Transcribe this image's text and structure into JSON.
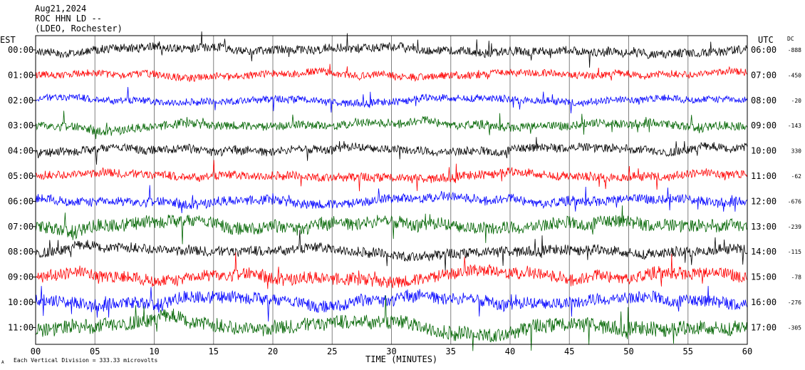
{
  "header": {
    "date": "Aug21,2024",
    "station": "ROC HHN LD --",
    "location": "(LDEO, Rochester)"
  },
  "chart_data": {
    "type": "line",
    "title": "",
    "xlabel": "TIME (MINUTES)",
    "left_axis_label": "EST",
    "right_axis_label": "UTC",
    "dc_label": "DC",
    "scale_note": "Each Vertical Division =  333.33 microvolts",
    "corner_mark": "A",
    "xlim": [
      0,
      60
    ],
    "x_ticks": [
      "00",
      "05",
      "10",
      "15",
      "20",
      "25",
      "30",
      "35",
      "40",
      "45",
      "50",
      "55",
      "60"
    ],
    "grid": "vertical lines every 5 minutes",
    "rows": [
      {
        "est": "00:00",
        "utc": "06:00",
        "dc": "-888",
        "color": "#000000",
        "amp": 12
      },
      {
        "est": "01:00",
        "utc": "07:00",
        "dc": "-450",
        "color": "#ff0000",
        "amp": 10
      },
      {
        "est": "02:00",
        "utc": "08:00",
        "dc": "-20",
        "color": "#0000ff",
        "amp": 10
      },
      {
        "est": "03:00",
        "utc": "09:00",
        "dc": "-143",
        "color": "#006400",
        "amp": 12
      },
      {
        "est": "04:00",
        "utc": "10:00",
        "dc": "330",
        "color": "#000000",
        "amp": 12
      },
      {
        "est": "05:00",
        "utc": "11:00",
        "dc": "-62",
        "color": "#ff0000",
        "amp": 12
      },
      {
        "est": "06:00",
        "utc": "12:00",
        "dc": "-676",
        "color": "#0000ff",
        "amp": 13
      },
      {
        "est": "07:00",
        "utc": "13:00",
        "dc": "-239",
        "color": "#006400",
        "amp": 18
      },
      {
        "est": "08:00",
        "utc": "14:00",
        "dc": "-115",
        "color": "#000000",
        "amp": 14
      },
      {
        "est": "09:00",
        "utc": "15:00",
        "dc": "-78",
        "color": "#ff0000",
        "amp": 17
      },
      {
        "est": "10:00",
        "utc": "16:00",
        "dc": "-276",
        "color": "#0000ff",
        "amp": 17
      },
      {
        "est": "11:00",
        "utc": "17:00",
        "dc": "-305",
        "color": "#006400",
        "amp": 20
      }
    ]
  }
}
